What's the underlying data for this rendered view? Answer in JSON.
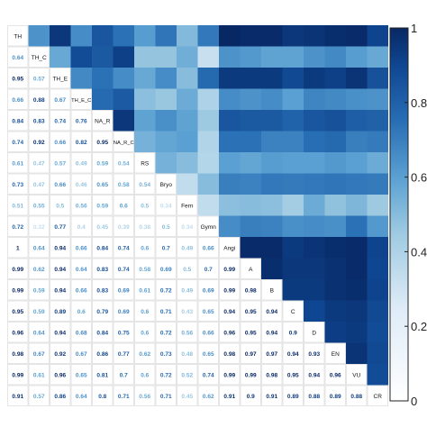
{
  "chart_data": {
    "type": "heatmap",
    "title": "",
    "variables": [
      "TH",
      "TH_C",
      "TH_E",
      "TH_E_C",
      "NA_R",
      "NA_R_C",
      "RS",
      "Bryo",
      "Fern",
      "Gymn",
      "Angi",
      "A",
      "B",
      "C",
      "D",
      "EN",
      "VU",
      "CR"
    ],
    "lower_triangle_rows": [
      [],
      [
        0.64
      ],
      [
        0.95,
        0.57
      ],
      [
        0.66,
        0.88,
        0.67
      ],
      [
        0.84,
        0.83,
        0.74,
        0.76
      ],
      [
        0.74,
        0.92,
        0.66,
        0.82,
        0.95
      ],
      [
        0.61,
        0.47,
        0.57,
        0.49,
        0.59,
        0.54
      ],
      [
        0.73,
        0.47,
        0.66,
        0.46,
        0.65,
        0.58,
        0.54
      ],
      [
        0.51,
        0.55,
        0.5,
        0.56,
        0.59,
        0.6,
        0.5,
        0.34
      ],
      [
        0.72,
        0.32,
        0.77,
        0.4,
        0.45,
        0.39,
        0.38,
        0.5,
        0.34
      ],
      [
        1,
        0.64,
        0.94,
        0.66,
        0.84,
        0.74,
        0.6,
        0.7,
        0.49,
        0.66
      ],
      [
        0.99,
        0.62,
        0.94,
        0.64,
        0.83,
        0.74,
        0.58,
        0.69,
        0.5,
        0.7,
        0.99
      ],
      [
        0.99,
        0.59,
        0.94,
        0.66,
        0.83,
        0.69,
        0.61,
        0.72,
        0.49,
        0.69,
        0.99,
        0.98
      ],
      [
        0.95,
        0.59,
        0.89,
        0.6,
        0.79,
        0.69,
        0.6,
        0.71,
        0.43,
        0.65,
        0.94,
        0.95,
        0.94
      ],
      [
        0.96,
        0.64,
        0.94,
        0.68,
        0.84,
        0.75,
        0.6,
        0.72,
        0.56,
        0.66,
        0.96,
        0.95,
        0.94,
        0.9
      ],
      [
        0.98,
        0.67,
        0.92,
        0.67,
        0.86,
        0.77,
        0.62,
        0.73,
        0.48,
        0.65,
        0.98,
        0.97,
        0.97,
        0.94,
        0.93
      ],
      [
        0.99,
        0.61,
        0.96,
        0.65,
        0.81,
        0.7,
        0.6,
        0.72,
        0.52,
        0.74,
        0.99,
        0.99,
        0.98,
        0.95,
        0.94,
        0.96
      ],
      [
        0.91,
        0.57,
        0.86,
        0.64,
        0.8,
        0.71,
        0.56,
        0.71,
        0.45,
        0.62,
        0.91,
        0.9,
        0.91,
        0.89,
        0.88,
        0.89,
        0.88
      ]
    ],
    "upper_triangle": "same correlations shown as coloured squares",
    "colorbar": {
      "range": [
        0,
        1
      ],
      "ticks": [
        "0",
        "0.2",
        "0.4",
        "0.6",
        "0.8",
        "1"
      ],
      "ticks_visible_text": [
        "0",
        "0.2",
        "0.4",
        "0.6",
        "0.8",
        "1"
      ],
      "color_low": "#ffffff",
      "color_mid": "#7fb4dc",
      "color_high": "#08306b"
    },
    "grid": true,
    "legend": "colorbar-right"
  }
}
